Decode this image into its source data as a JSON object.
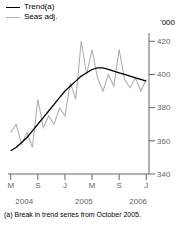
{
  "chart_data": {
    "type": "line",
    "ylabel": "'000",
    "x": [
      0,
      1,
      2,
      3,
      4,
      5,
      6,
      7,
      8,
      9,
      10,
      11,
      12,
      13,
      14,
      15,
      16,
      17,
      18,
      19,
      20,
      21,
      22,
      23,
      24,
      25
    ],
    "series": [
      {
        "name": "Trend(a)",
        "color": "#000000",
        "values": [
          354,
          356,
          359,
          362,
          366,
          370,
          374,
          378,
          382,
          386,
          390,
          393,
          396,
          399,
          401,
          403,
          404,
          404,
          403,
          402,
          401,
          400,
          399,
          398,
          397,
          396
        ]
      },
      {
        "name": "Seas adj.",
        "color": "#b0b0b0",
        "values": [
          365,
          370,
          358,
          365,
          356,
          385,
          368,
          375,
          370,
          380,
          375,
          395,
          385,
          420,
          400,
          415,
          398,
          390,
          400,
          393,
          415,
          397,
          392,
          398,
          390,
          397
        ]
      }
    ],
    "xlim": [
      -0.5,
      25.5
    ],
    "xticks": [
      {
        "value": 0,
        "label": "M"
      },
      {
        "value": 5,
        "label": "S"
      },
      {
        "value": 10,
        "label": "J"
      },
      {
        "value": 15,
        "label": "M"
      },
      {
        "value": 20,
        "label": "S"
      },
      {
        "value": 25,
        "label": "J"
      }
    ],
    "ylim": [
      340,
      425
    ],
    "yticks": [
      340,
      360,
      380,
      400,
      420
    ],
    "annotations": [
      {
        "text": "2004",
        "x": 2.5
      },
      {
        "text": "2005",
        "x": 13.5
      },
      {
        "text": "2006",
        "x": 23.5
      }
    ],
    "footnote": "(a) Break in trend series from October 2005.",
    "legend": "upper left"
  }
}
